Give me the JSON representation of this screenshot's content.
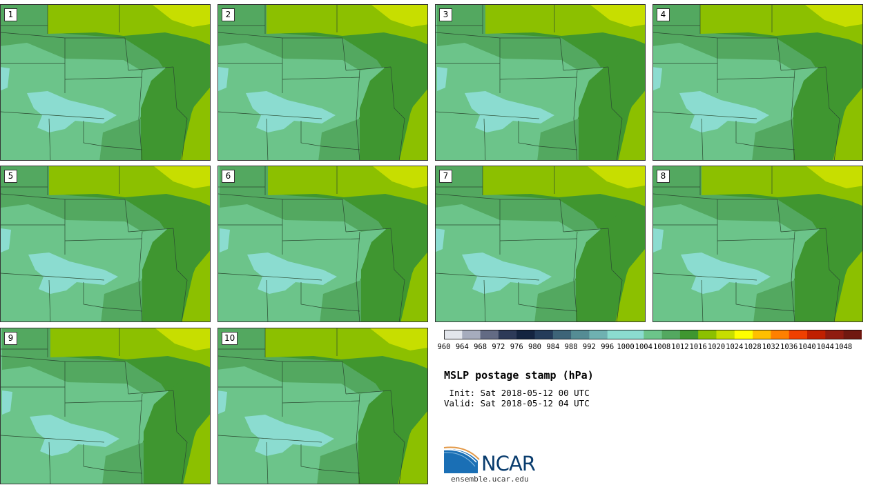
{
  "panels": [
    {
      "label": "1"
    },
    {
      "label": "2"
    },
    {
      "label": "3"
    },
    {
      "label": "4"
    },
    {
      "label": "5"
    },
    {
      "label": "6"
    },
    {
      "label": "7"
    },
    {
      "label": "8"
    },
    {
      "label": "9"
    },
    {
      "label": "10"
    }
  ],
  "colorbar": {
    "colors": [
      "#e3e6ec",
      "#a6acbd",
      "#636b84",
      "#2d3a58",
      "#142440",
      "#243c5a",
      "#3d6478",
      "#558c94",
      "#6fb1b1",
      "#8bdcd0",
      "#8bdcd0",
      "#6cc48a",
      "#53a860",
      "#3f9630",
      "#8cc000",
      "#c7de00",
      "#ffff00",
      "#ffbf00",
      "#ff8000",
      "#f04000",
      "#c02000",
      "#901c10",
      "#701810"
    ],
    "ticks": [
      "960",
      "964",
      "968",
      "972",
      "976",
      "980",
      "984",
      "988",
      "992",
      "996",
      "1000",
      "1004",
      "1008",
      "1012",
      "1016",
      "1020",
      "1024",
      "1028",
      "1032",
      "1036",
      "1040",
      "1044",
      "1048"
    ]
  },
  "map_colors": {
    "light": "#8bdcd0",
    "mid": "#6cc48a",
    "medium": "#53a860",
    "dark": "#3f9630",
    "lime": "#8cc000",
    "yellow": "#c7de00"
  },
  "title": "MSLP postage stamp (hPa)",
  "init": " Init: Sat 2018-05-12 00 UTC",
  "valid": "Valid: Sat 2018-05-12 04 UTC",
  "logo_text": "NCAR",
  "site": "ensemble.ucar.edu"
}
